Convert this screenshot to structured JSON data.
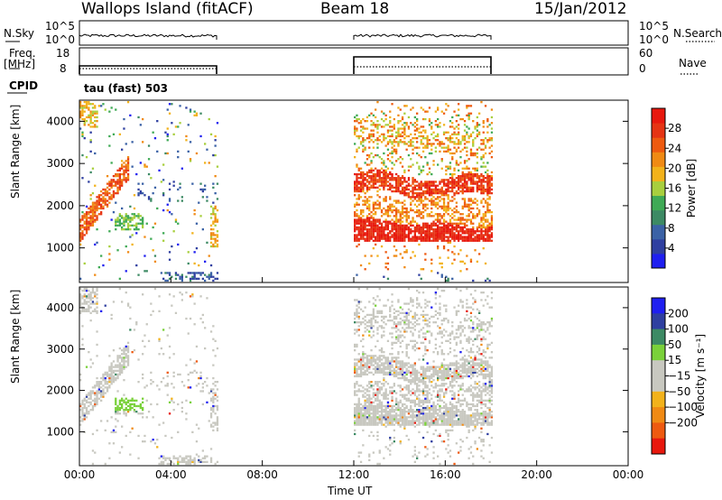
{
  "header": {
    "station": "Wallops Island (fitACF)",
    "beam": "Beam 18",
    "date": "15/Jan/2012"
  },
  "panels": {
    "nsky_label": "N.Sky",
    "nsearch_label": "N.Search",
    "freq_label_1": "Freq.",
    "freq_label_2": "[MHz]",
    "nave_label": "Nave",
    "cpid_label": "CPID",
    "mode_text": "tau (fast) 503",
    "log_top": "10^5",
    "log_bottom": "10^0",
    "freq_ticks": [
      "18",
      "8"
    ],
    "nave_ticks": [
      "60",
      "0"
    ]
  },
  "colors": {
    "power_scale": [
      "#1f1ff0",
      "#2f3fa0",
      "#3b62a6",
      "#3d8a64",
      "#3faa55",
      "#a8cf3e",
      "#f2b21b",
      "#f08a14",
      "#ee5a10",
      "#e63414",
      "#e8180e"
    ],
    "velocity_scale": [
      "#1f1ff0",
      "#2f3fa0",
      "#3d8a64",
      "#7ad13a",
      "#c8c8c0",
      "#c8c8c0",
      "#f2b21b",
      "#f08a14",
      "#ee5a10",
      "#e8180e"
    ]
  },
  "chart_data": [
    {
      "type": "heatmap",
      "name": "Power",
      "xlabel": "",
      "ylabel": "Slant Range [km]",
      "xlim": [
        "00:00",
        "24:00"
      ],
      "ylim": [
        180,
        4500
      ],
      "yticks": [
        1000,
        2000,
        3000,
        4000
      ],
      "colorbar": {
        "label": "Power [dB]",
        "ticks": [
          4,
          8,
          12,
          16,
          20,
          24,
          28
        ],
        "range": [
          0,
          32
        ]
      },
      "data_periods": [
        [
          "00:00",
          "06:00"
        ],
        [
          "12:00",
          "18:00"
        ]
      ]
    },
    {
      "type": "heatmap",
      "name": "Velocity",
      "xlabel": "Time UT",
      "ylabel": "Slant Range [km]",
      "xlim": [
        "00:00",
        "24:00"
      ],
      "ylim": [
        180,
        4500
      ],
      "yticks": [
        1000,
        2000,
        3000,
        4000
      ],
      "xticks": [
        "00:00",
        "04:00",
        "08:00",
        "12:00",
        "16:00",
        "20:00",
        "00:00"
      ],
      "colorbar": {
        "label": "Velocity [m s⁻¹]",
        "ticks": [
          "200",
          "100",
          "50",
          "15",
          "−15",
          "−50",
          "−100",
          "−200"
        ]
      },
      "data_periods": [
        [
          "00:00",
          "06:00"
        ],
        [
          "12:00",
          "18:00"
        ]
      ]
    }
  ]
}
